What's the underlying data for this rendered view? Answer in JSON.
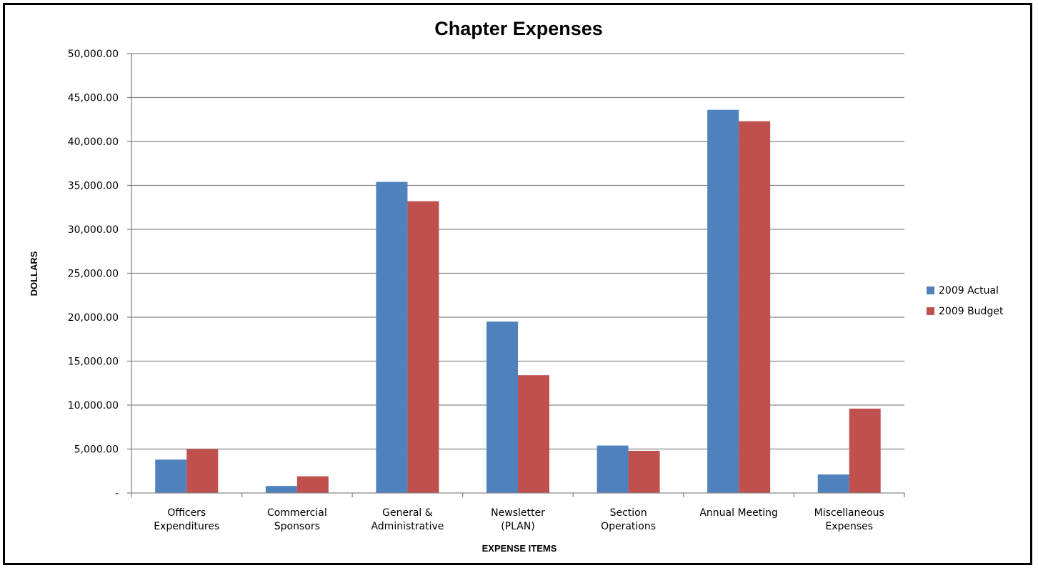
{
  "chart_data": {
    "type": "bar",
    "title": "Chapter Expenses",
    "xlabel": "EXPENSE ITEMS",
    "ylabel": "DOLLARS",
    "ylim": [
      0,
      50000
    ],
    "yticks": [
      "-",
      "5,000.00",
      "10,000.00",
      "15,000.00",
      "20,000.00",
      "25,000.00",
      "30,000.00",
      "35,000.00",
      "40,000.00",
      "45,000.00",
      "50,000.00"
    ],
    "categories": [
      [
        "Officers",
        "Expenditures"
      ],
      [
        "Commercial",
        "Sponsors"
      ],
      [
        "General &",
        "Administrative"
      ],
      [
        "Newsletter",
        "(PLAN)"
      ],
      [
        "Section",
        "Operations"
      ],
      [
        "Annual Meeting"
      ],
      [
        "Miscellaneous",
        "Expenses"
      ]
    ],
    "series": [
      {
        "name": "2009 Actual",
        "color": "#4F81BD",
        "values": [
          3800,
          800,
          35400,
          19500,
          5400,
          43600,
          2100
        ]
      },
      {
        "name": "2009 Budget",
        "color": "#C0504D",
        "values": [
          5000,
          1900,
          33200,
          13400,
          4800,
          42300,
          9600
        ]
      }
    ],
    "grid": true,
    "legend_position": "right"
  }
}
